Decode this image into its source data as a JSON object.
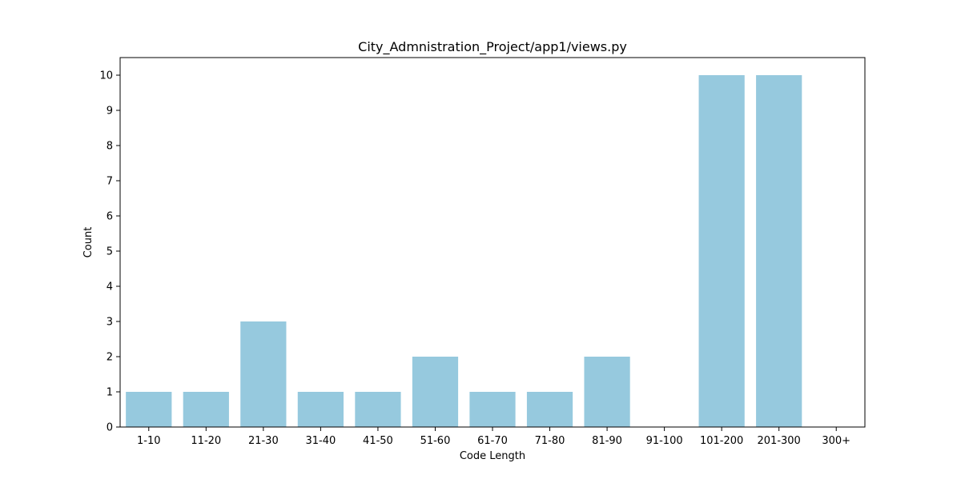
{
  "chart_data": {
    "type": "bar",
    "title": "City_Admnistration_Project/app1/views.py",
    "xlabel": "Code Length",
    "ylabel": "Count",
    "categories": [
      "1-10",
      "11-20",
      "21-30",
      "31-40",
      "41-50",
      "51-60",
      "61-70",
      "71-80",
      "81-90",
      "91-100",
      "101-200",
      "201-300",
      "300+"
    ],
    "values": [
      1,
      1,
      3,
      1,
      1,
      2,
      1,
      1,
      2,
      0,
      10,
      10,
      0
    ],
    "ylim": [
      0,
      10.5
    ],
    "yticks": [
      0,
      1,
      2,
      3,
      4,
      5,
      6,
      7,
      8,
      9,
      10
    ],
    "bar_color": "#96c9de",
    "grid": false,
    "legend": "none"
  }
}
